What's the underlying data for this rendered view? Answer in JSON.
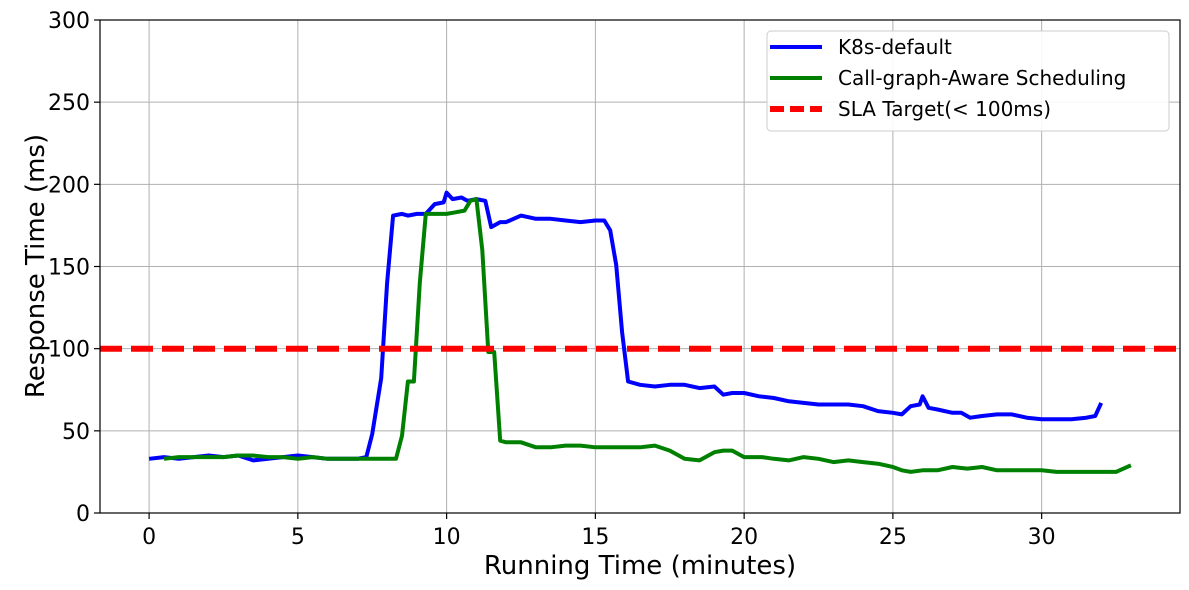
{
  "chart_data": {
    "type": "line",
    "title": "",
    "xlabel": "Running Time (minutes)",
    "ylabel": "Response Time (ms)",
    "xlim": [
      -1.65,
      34.65
    ],
    "ylim": [
      0,
      300
    ],
    "xticks": [
      0,
      5,
      10,
      15,
      20,
      25,
      30
    ],
    "yticks": [
      0,
      50,
      100,
      150,
      200,
      250,
      300
    ],
    "grid": true,
    "legend_position": "top-right",
    "series": [
      {
        "name": "K8s-default",
        "color": "#0000ff",
        "style": "solid",
        "x": [
          0,
          0.5,
          1,
          1.5,
          2,
          2.5,
          3,
          3.5,
          4,
          4.5,
          5,
          5.5,
          6,
          6.5,
          7,
          7.3,
          7.5,
          7.8,
          8.0,
          8.2,
          8.5,
          8.7,
          9.0,
          9.3,
          9.6,
          9.9,
          10.0,
          10.2,
          10.5,
          10.7,
          11.0,
          11.3,
          11.5,
          11.8,
          12.0,
          12.5,
          13.0,
          13.5,
          14.0,
          14.5,
          15.0,
          15.3,
          15.5,
          15.7,
          15.9,
          16.1,
          16.5,
          17.0,
          17.5,
          18.0,
          18.5,
          19.0,
          19.3,
          19.6,
          20.0,
          20.5,
          21.0,
          21.5,
          22.0,
          22.5,
          23.0,
          23.5,
          24.0,
          24.5,
          25.0,
          25.3,
          25.6,
          25.9,
          26.0,
          26.2,
          26.5,
          27.0,
          27.3,
          27.6,
          28.0,
          28.5,
          29.0,
          29.5,
          30.0,
          30.5,
          31.0,
          31.5,
          31.8,
          32.0
        ],
        "y": [
          33,
          34,
          33,
          34,
          35,
          34,
          35,
          32,
          33,
          34,
          35,
          34,
          33,
          33,
          33,
          34,
          48,
          82,
          140,
          181,
          182,
          181,
          182,
          182,
          188,
          189,
          195,
          191,
          192,
          190,
          191,
          190,
          174,
          177,
          177,
          181,
          179,
          179,
          178,
          177,
          178,
          178,
          172,
          151,
          110,
          80,
          78,
          77,
          78,
          78,
          76,
          77,
          72,
          73,
          73,
          71,
          70,
          68,
          67,
          66,
          66,
          66,
          65,
          62,
          61,
          60,
          65,
          66,
          71,
          64,
          63,
          61,
          61,
          58,
          59,
          60,
          60,
          58,
          57,
          57,
          57,
          58,
          59,
          67
        ]
      },
      {
        "name": "Call-graph-Aware Scheduling",
        "color": "#008000",
        "style": "solid",
        "x": [
          0.5,
          1,
          1.5,
          2,
          2.5,
          3,
          3.5,
          4,
          4.5,
          5,
          5.5,
          6,
          6.5,
          7,
          7.5,
          8.0,
          8.3,
          8.5,
          8.7,
          8.9,
          9.1,
          9.3,
          9.6,
          10.0,
          10.3,
          10.6,
          10.8,
          11.0,
          11.2,
          11.4,
          11.6,
          11.8,
          12.0,
          12.3,
          12.5,
          13.0,
          13.5,
          14.0,
          14.5,
          15.0,
          15.5,
          16.0,
          16.5,
          17.0,
          17.5,
          18.0,
          18.5,
          19.0,
          19.3,
          19.6,
          20.0,
          20.3,
          20.6,
          21.0,
          21.5,
          22.0,
          22.5,
          23.0,
          23.5,
          24.0,
          24.5,
          25.0,
          25.3,
          25.6,
          26.0,
          26.5,
          27.0,
          27.5,
          28.0,
          28.5,
          29.0,
          29.5,
          30.0,
          30.5,
          31.0,
          31.5,
          32.0,
          32.5,
          33.0
        ],
        "y": [
          33,
          34,
          34,
          34,
          34,
          35,
          35,
          34,
          34,
          33,
          34,
          33,
          33,
          33,
          33,
          33,
          33,
          47,
          80,
          80,
          140,
          182,
          182,
          182,
          183,
          184,
          190,
          191,
          160,
          98,
          98,
          44,
          43,
          43,
          43,
          40,
          40,
          41,
          41,
          40,
          40,
          40,
          40,
          41,
          38,
          33,
          32,
          37,
          38,
          38,
          34,
          34,
          34,
          33,
          32,
          34,
          33,
          31,
          32,
          31,
          30,
          28,
          26,
          25,
          26,
          26,
          28,
          27,
          28,
          26,
          26,
          26,
          26,
          25,
          25,
          25,
          25,
          25,
          29
        ]
      },
      {
        "name": "SLA Target(< 100ms)",
        "color": "#ff0000",
        "style": "dashed",
        "x": [
          -1.65,
          34.65
        ],
        "y": [
          100,
          100
        ]
      }
    ]
  }
}
